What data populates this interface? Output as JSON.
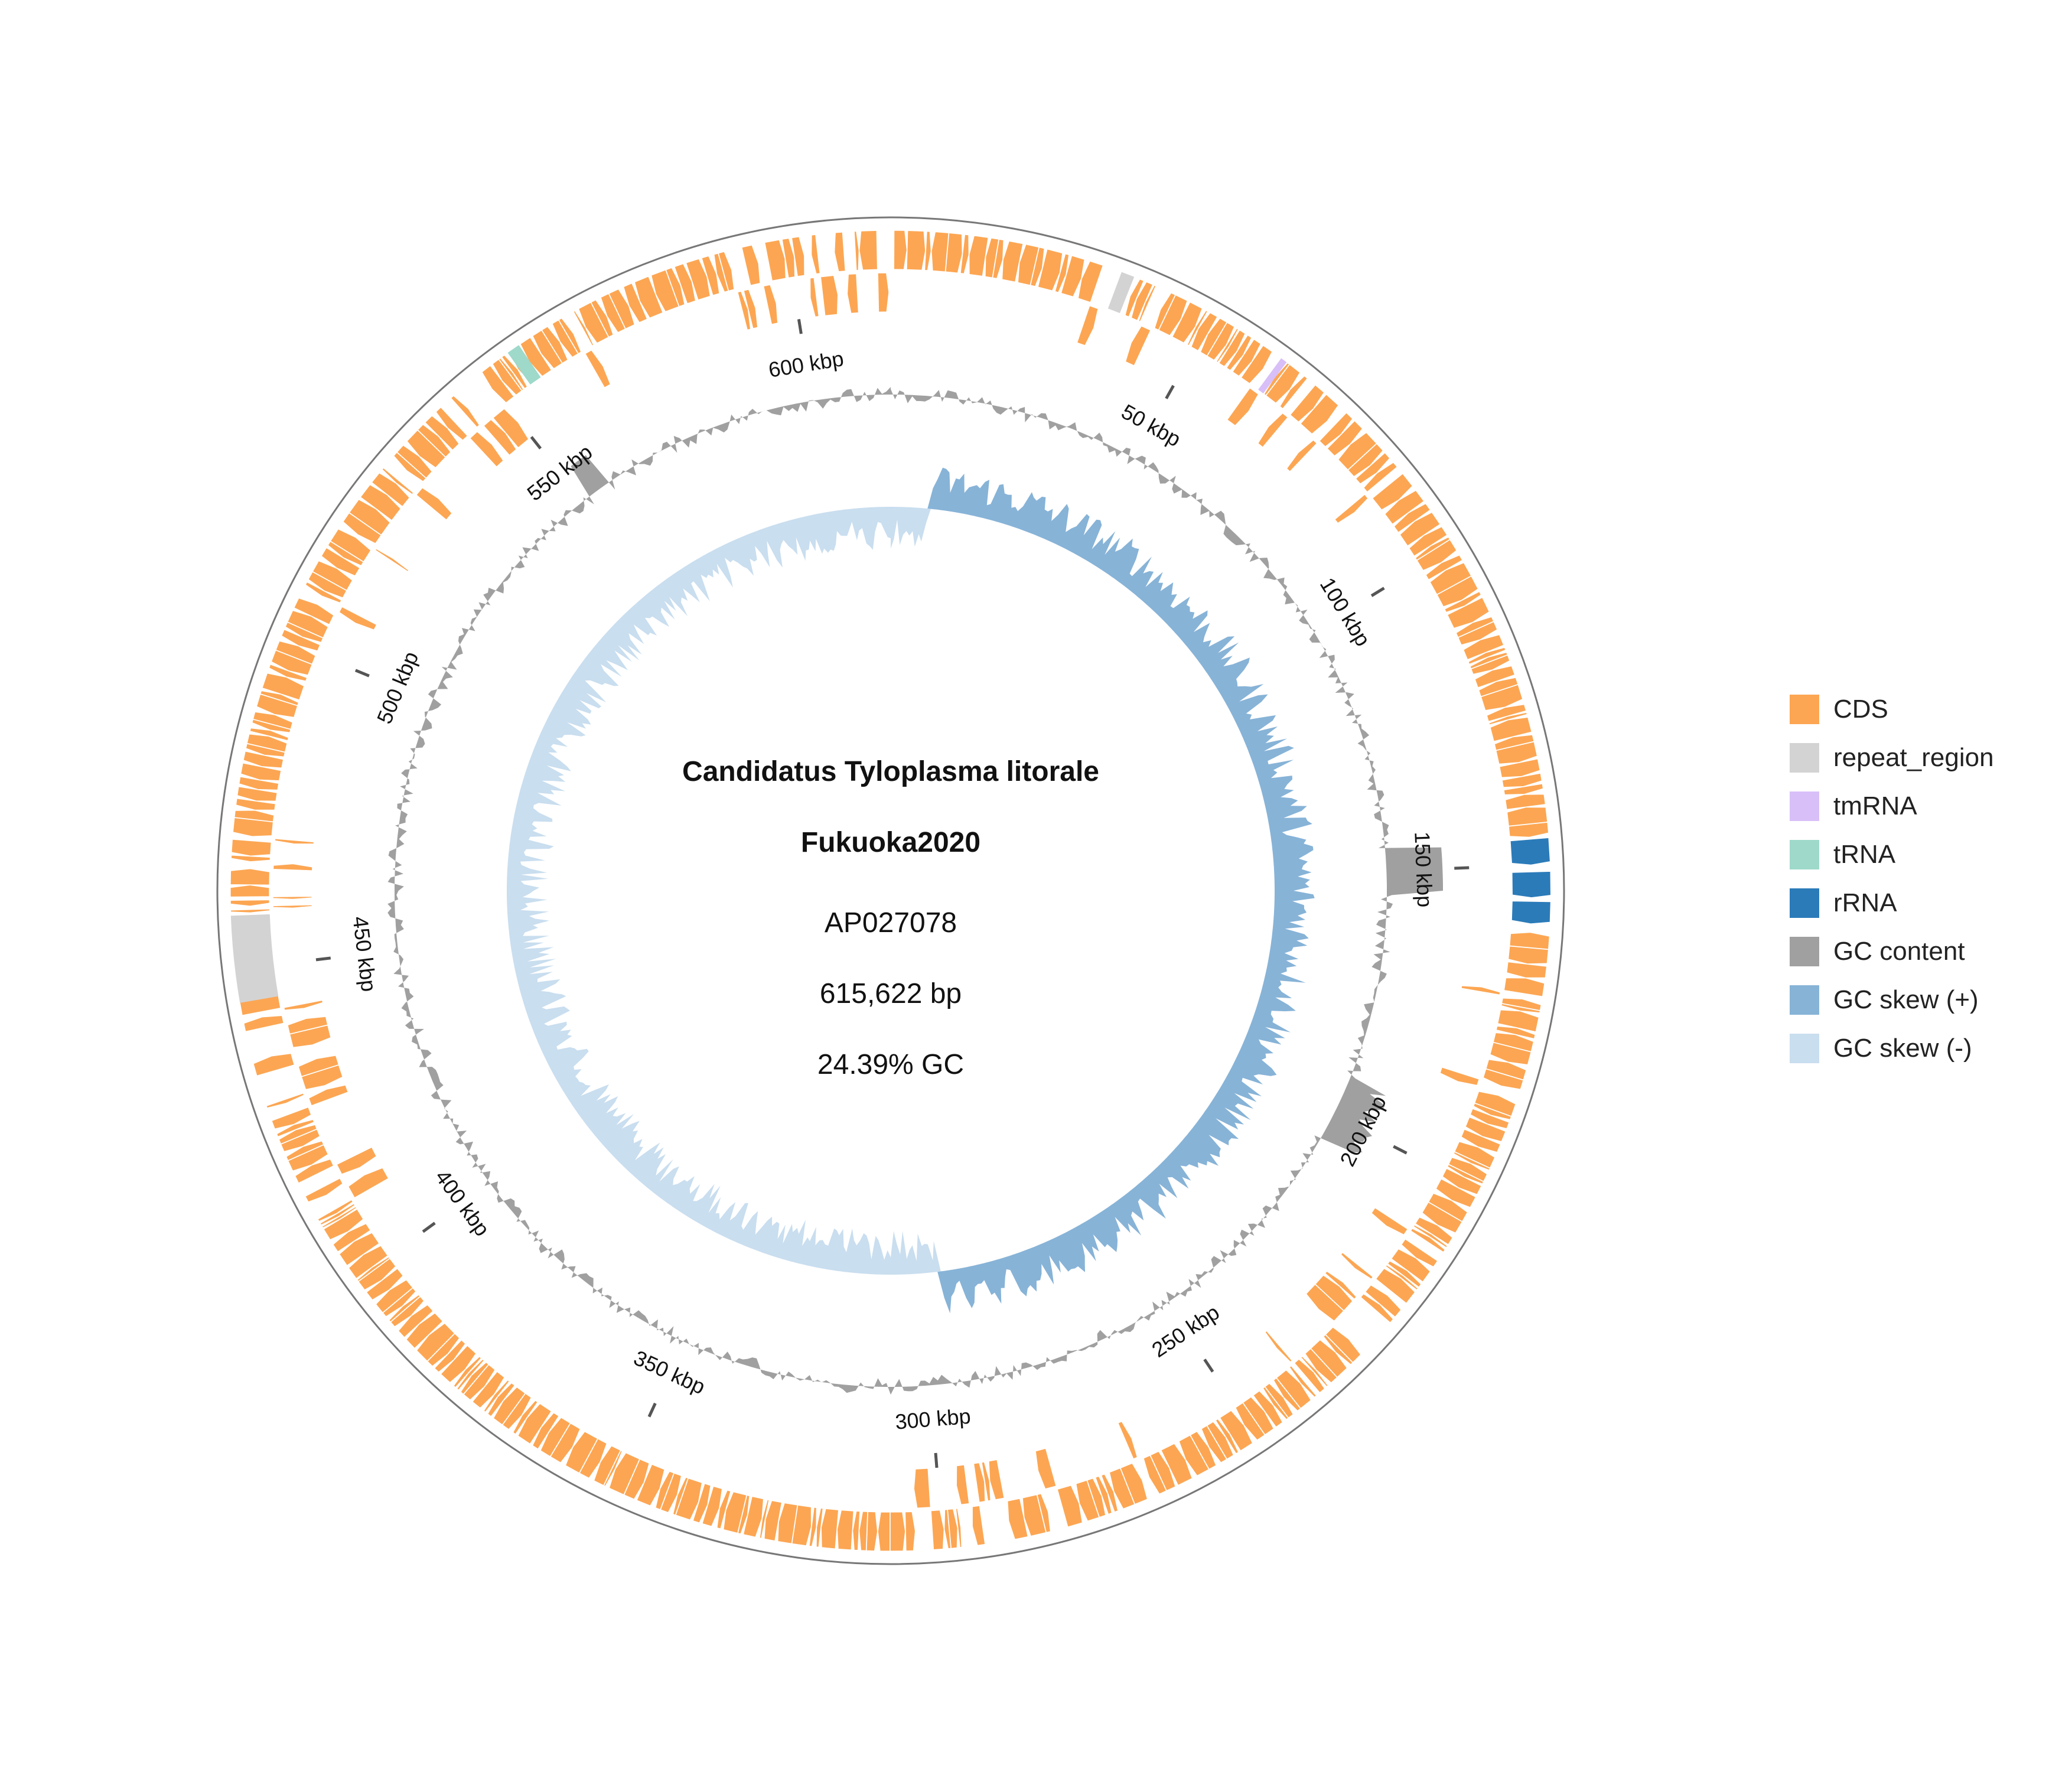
{
  "map": {
    "organism": "Candidatus Tyloplasma litorale",
    "strain": "Fukuoka2020",
    "accession": "AP027078",
    "length_label": "615,622 bp",
    "gc_label": "24.39% GC",
    "genome_length_bp": 615622,
    "tick_labels": [
      "50 kbp",
      "100 kbp",
      "150 kbp",
      "200 kbp",
      "250 kbp",
      "300 kbp",
      "350 kbp",
      "400 kbp",
      "450 kbp",
      "500 kbp",
      "550 kbp",
      "600 kbp"
    ],
    "tick_positions_kbp": [
      50,
      100,
      150,
      200,
      250,
      300,
      350,
      400,
      450,
      500,
      550,
      600
    ]
  },
  "legend": [
    {
      "label": "CDS",
      "color": "#FCA653"
    },
    {
      "label": "repeat_region",
      "color": "#D3D3D3"
    },
    {
      "label": "tmRNA",
      "color": "#D8BFF8"
    },
    {
      "label": "tRNA",
      "color": "#9ED9CA"
    },
    {
      "label": "rRNA",
      "color": "#2B7BB9"
    },
    {
      "label": "GC content",
      "color": "#A0A0A0"
    },
    {
      "label": "GC skew (+)",
      "color": "#87B3D7"
    },
    {
      "label": "GC skew (-)",
      "color": "#C9DEEF"
    }
  ],
  "features": {
    "repeat_regions_kbp": [
      [
        35,
        37
      ],
      [
        445,
        458
      ]
    ],
    "rrna_kbp": [
      [
        146,
        150
      ],
      [
        151,
        155
      ],
      [
        155.5,
        159
      ]
    ],
    "trna_kbp": [
      [
        555,
        557
      ]
    ],
    "tmrna_kbp": [
      [
        62,
        63
      ]
    ]
  }
}
